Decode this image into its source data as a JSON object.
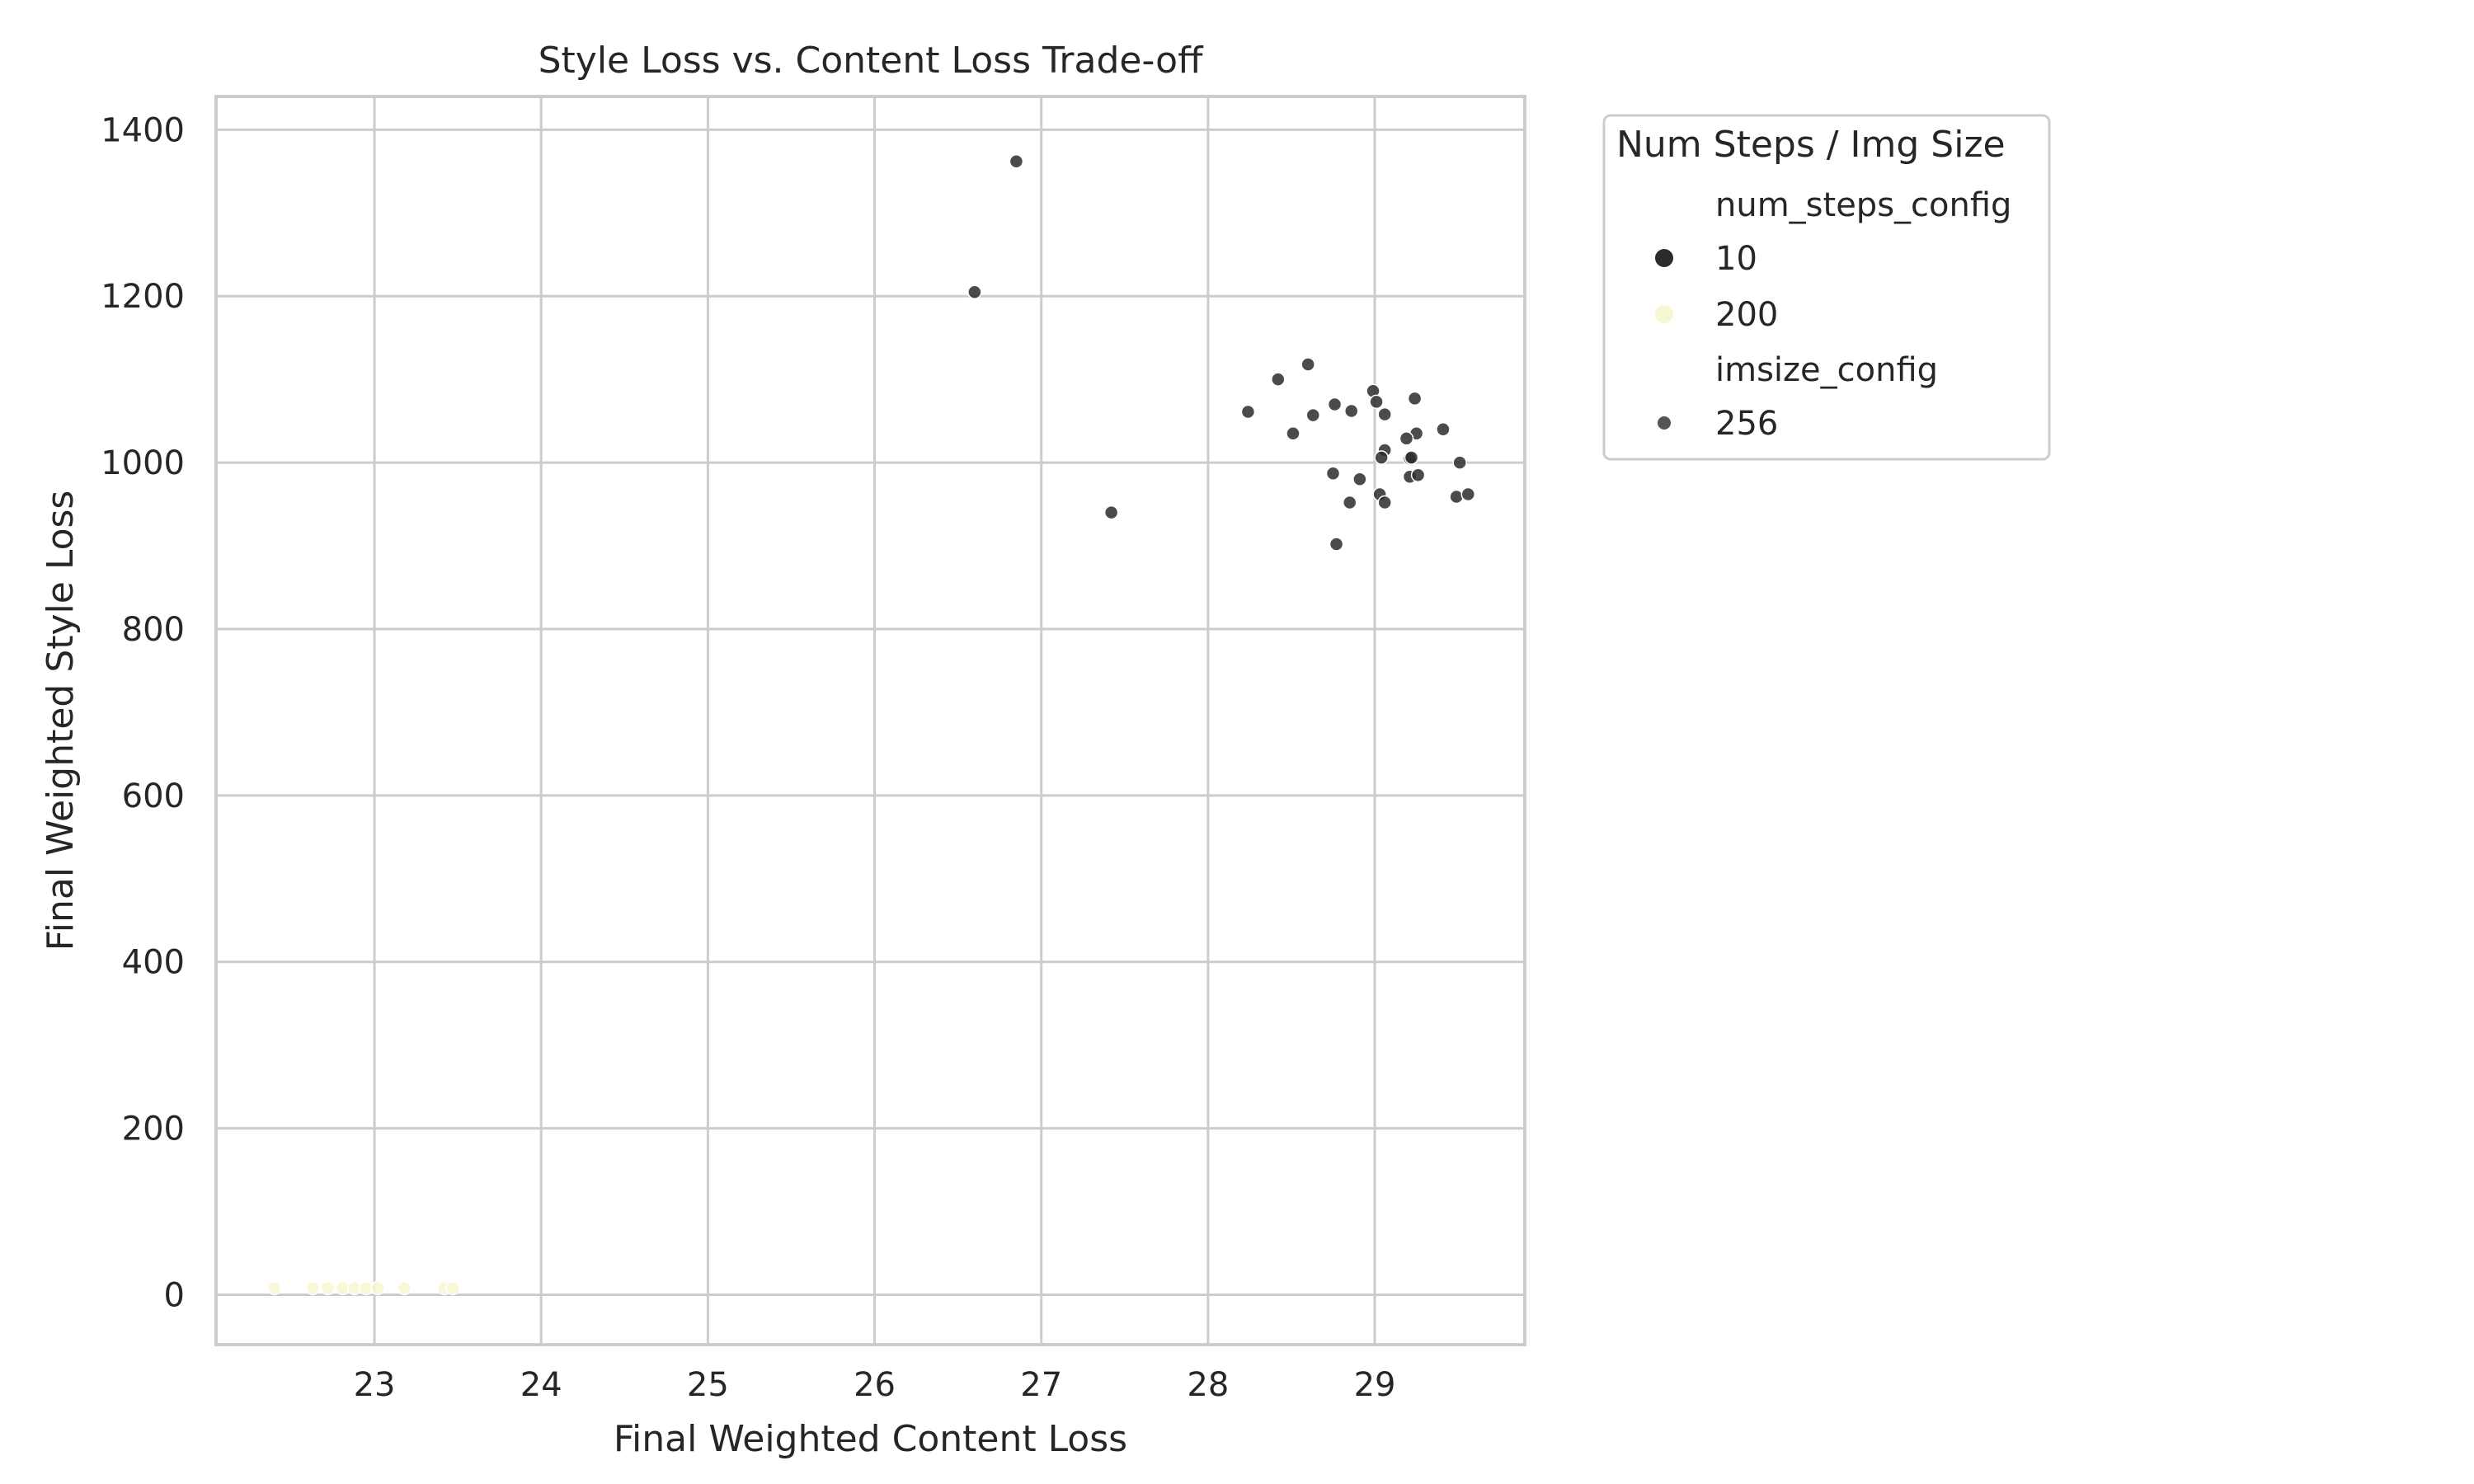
{
  "chart_data": {
    "type": "scatter",
    "title": "Style Loss vs. Content Loss Trade-off",
    "xlabel": "Final Weighted Content Loss",
    "ylabel": "Final Weighted Style Loss",
    "xlim": [
      22.05,
      29.9
    ],
    "ylim": [
      -60,
      1440
    ],
    "xticks": [
      23,
      24,
      25,
      26,
      27,
      28,
      29
    ],
    "yticks": [
      0,
      200,
      400,
      600,
      800,
      1000,
      1200,
      1400
    ],
    "grid": true,
    "legend": {
      "placement": "outside-right-top",
      "title": "Num Steps / Img Size",
      "hue_title": "num_steps_config",
      "size_title": "imsize_config",
      "entries": [
        {
          "label": "10",
          "color": "#2b2b2b"
        },
        {
          "label": "200",
          "color": "#f7f7d2"
        }
      ],
      "size_entries": [
        {
          "label": "256",
          "color": "#555555"
        }
      ]
    },
    "series": [
      {
        "name": "10",
        "color": "#2b2b2b",
        "points": [
          [
            26.85,
            1362
          ],
          [
            26.6,
            1205
          ],
          [
            27.42,
            940
          ],
          [
            28.6,
            1118
          ],
          [
            28.42,
            1100
          ],
          [
            28.24,
            1061
          ],
          [
            28.51,
            1035
          ],
          [
            28.63,
            1057
          ],
          [
            28.76,
            1070
          ],
          [
            28.86,
            1062
          ],
          [
            28.99,
            1086
          ],
          [
            29.01,
            1073
          ],
          [
            29.06,
            1058
          ],
          [
            29.24,
            1077
          ],
          [
            29.41,
            1040
          ],
          [
            29.25,
            1035
          ],
          [
            29.19,
            1029
          ],
          [
            29.06,
            1015
          ],
          [
            29.04,
            1006
          ],
          [
            29.21,
            1005
          ],
          [
            29.22,
            1006
          ],
          [
            29.51,
            1000
          ],
          [
            29.21,
            983
          ],
          [
            29.26,
            985
          ],
          [
            28.75,
            987
          ],
          [
            28.91,
            980
          ],
          [
            29.03,
            962
          ],
          [
            29.06,
            952
          ],
          [
            28.85,
            952
          ],
          [
            29.49,
            959
          ],
          [
            29.56,
            962
          ],
          [
            28.77,
            902
          ]
        ]
      },
      {
        "name": "200",
        "color": "#f7f7d2",
        "points": [
          [
            22.4,
            8
          ],
          [
            22.63,
            8
          ],
          [
            22.72,
            8
          ],
          [
            22.81,
            8
          ],
          [
            22.88,
            8
          ],
          [
            22.95,
            8
          ],
          [
            23.02,
            8
          ],
          [
            23.18,
            8
          ],
          [
            23.42,
            8
          ],
          [
            23.47,
            8
          ]
        ]
      }
    ]
  }
}
